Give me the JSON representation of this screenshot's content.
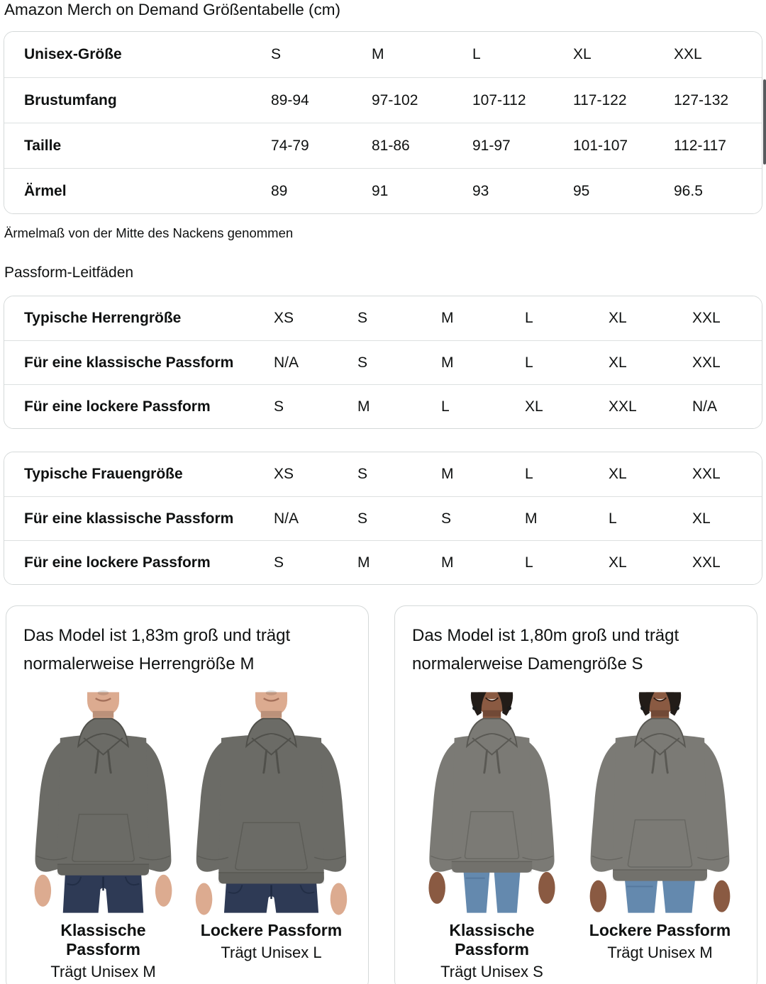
{
  "title": "Amazon Merch on Demand Größentabelle (cm)",
  "note": "Ärmelmaß von der Mitte des Nackens genommen",
  "fit_guides_heading": "Passform-Leitfäden",
  "size_table": {
    "rows": [
      {
        "label": "Unisex-Größe",
        "cells": [
          "S",
          "M",
          "L",
          "XL",
          "XXL"
        ]
      },
      {
        "label": "Brustumfang",
        "cells": [
          "89-94",
          "97-102",
          "107-112",
          "117-122",
          "127-132"
        ]
      },
      {
        "label": "Taille",
        "cells": [
          "74-79",
          "81-86",
          "91-97",
          "101-107",
          "112-117"
        ]
      },
      {
        "label": "Ärmel",
        "cells": [
          "89",
          "91",
          "93",
          "95",
          "96.5"
        ]
      }
    ]
  },
  "fit_tables": [
    {
      "name": "men",
      "rows": [
        {
          "label": "Typische Herrengröße",
          "cells": [
            "XS",
            "S",
            "M",
            "L",
            "XL",
            "XXL"
          ]
        },
        {
          "label": "Für eine klassische Passform",
          "cells": [
            "N/A",
            "S",
            "M",
            "L",
            "XL",
            "XXL"
          ]
        },
        {
          "label": "Für eine lockere Passform",
          "cells": [
            "S",
            "M",
            "L",
            "XL",
            "XXL",
            "N/A"
          ]
        }
      ]
    },
    {
      "name": "women",
      "rows": [
        {
          "label": "Typische Frauengröße",
          "cells": [
            "XS",
            "S",
            "M",
            "L",
            "XL",
            "XXL"
          ]
        },
        {
          "label": "Für eine klassische Passform",
          "cells": [
            "N/A",
            "S",
            "S",
            "M",
            "L",
            "XL"
          ]
        },
        {
          "label": "Für eine lockere Passform",
          "cells": [
            "S",
            "M",
            "M",
            "L",
            "XL",
            "XXL"
          ]
        }
      ]
    }
  ],
  "model_cards": [
    {
      "heading": "Das Model ist 1,83m groß und trägt normalerweise Herrengröße M",
      "model": "male",
      "figures": [
        {
          "fit_label": "Klassische Passform",
          "size_label": "Trägt Unisex M",
          "variant": "classic"
        },
        {
          "fit_label": "Lockere Passform",
          "size_label": "Trägt Unisex L",
          "variant": "loose"
        }
      ]
    },
    {
      "heading": "Das Model ist 1,80m groß und trägt normalerweise Damengröße S",
      "model": "female",
      "figures": [
        {
          "fit_label": "Klassische Passform",
          "size_label": "Trägt Unisex S",
          "variant": "classic"
        },
        {
          "fit_label": "Lockere Passform",
          "size_label": "Trägt Unisex M",
          "variant": "loose"
        }
      ]
    }
  ],
  "colors": {
    "text": "#0f1111",
    "table_border": "#d5d9d9",
    "row_divider": "#dde0e0",
    "hoodie_men": "#6b6b66",
    "hoodie_women": "#7b7a75",
    "skin_men": "#dcab90",
    "skin_women": "#8a5a42",
    "hair_women": "#221c18",
    "jeans_men": "#2e3a55",
    "jeans_women": "#6489ae",
    "scrollbar": "#575b5e"
  }
}
